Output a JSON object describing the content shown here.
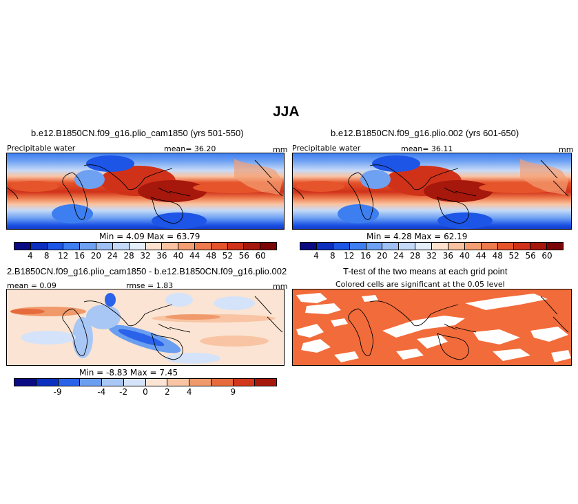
{
  "season_title": "JJA",
  "panels": {
    "top_left": {
      "case_title": "b.e12.B1850CN.f09_g16.plio_cam1850 (yrs 501-550)",
      "variable": "Precipitable water",
      "mean_label": "mean=",
      "mean": "36.20",
      "units": "mm",
      "min_label": "Min =",
      "min": "4.09",
      "max_label": "Max =",
      "max": "63.79"
    },
    "top_right": {
      "case_title": "b.e12.B1850CN.f09_g16.plio.002 (yrs 601-650)",
      "variable": "Precipitable water",
      "mean_label": "mean=",
      "mean": "36.11",
      "units": "mm",
      "min_label": "Min =",
      "min": "4.28",
      "max_label": "Max =",
      "max": "62.19"
    },
    "bottom_left": {
      "case_title": "2.B1850CN.f09_g16.plio_cam1850 - b.e12.B1850CN.f09_g16.plio.002",
      "mean_label": "mean =",
      "mean": "0.09",
      "rmse_label": "rmse =",
      "rmse": "1.83",
      "units": "mm",
      "min_label": "Min =",
      "min": "-8.83",
      "max_label": "Max =",
      "max": "7.45"
    },
    "bottom_right": {
      "case_title": "T-test of the two means at each grid point",
      "subtitle": "Colored cells are significant at the 0.05 level",
      "significant_color": "#f26b3a"
    }
  },
  "colorbars": {
    "absolute": {
      "colors": [
        "#0a0a82",
        "#0c2fbf",
        "#1d55e6",
        "#3d7ef0",
        "#6ea1f2",
        "#9ec0f5",
        "#c5daf8",
        "#e5eefb",
        "#fde3cf",
        "#f9c3a1",
        "#f49e73",
        "#ee7b4d",
        "#e6542b",
        "#cf3219",
        "#a6170c",
        "#7a0606"
      ],
      "ticks": [
        "4",
        "8",
        "12",
        "16",
        "20",
        "24",
        "28",
        "32",
        "36",
        "40",
        "44",
        "48",
        "52",
        "56",
        "60"
      ]
    },
    "difference": {
      "colors": [
        "#0a0a82",
        "#0c2fbf",
        "#2a63ea",
        "#6a9ef1",
        "#a9c7f5",
        "#d4e3f9",
        "#fbe4d3",
        "#f8c4a3",
        "#f09a6c",
        "#e66a3c",
        "#d2361c",
        "#a6170c"
      ],
      "ticks": [
        "-9",
        "-4",
        "-2",
        "0",
        "2",
        "4",
        "9"
      ]
    }
  }
}
